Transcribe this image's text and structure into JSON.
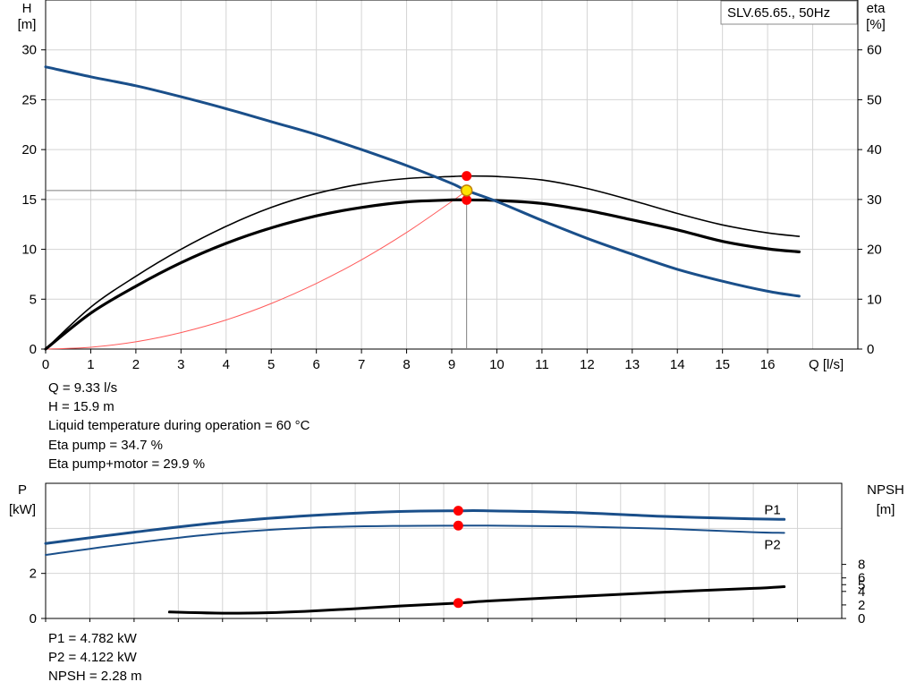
{
  "chart_data": [
    {
      "type": "line",
      "name": "pump-performance",
      "curve_id": "SLV.65.65., 50Hz",
      "xlabel": "Q [l/s]",
      "ylabel_left": [
        "H",
        "[m]"
      ],
      "ylabel_right": [
        "eta",
        "[%]"
      ],
      "xlim": [
        0,
        18
      ],
      "ylim_left": [
        0,
        35
      ],
      "ylim_right": [
        0,
        70
      ],
      "x_ticks": [
        "0",
        "1",
        "2",
        "3",
        "4",
        "5",
        "6",
        "7",
        "8",
        "9",
        "10",
        "11",
        "12",
        "13",
        "14",
        "15",
        "16"
      ],
      "y_ticks_left": [
        "0",
        "5",
        "10",
        "15",
        "20",
        "25",
        "30"
      ],
      "y_ticks_right": [
        "0",
        "10",
        "20",
        "30",
        "40",
        "50",
        "60"
      ],
      "grid": true,
      "series": [
        {
          "id": "H",
          "axis": "left",
          "color": "#1a4f8a",
          "width": 3,
          "x": [
            0,
            1,
            2,
            3,
            4,
            5,
            6,
            7,
            8,
            9,
            9.33,
            10,
            11,
            12,
            13,
            14,
            15,
            16,
            16.7
          ],
          "y": [
            28.3,
            27.3,
            26.4,
            25.3,
            24.1,
            22.8,
            21.5,
            20.0,
            18.4,
            16.6,
            15.9,
            14.8,
            12.9,
            11.1,
            9.5,
            8.0,
            6.8,
            5.8,
            5.3
          ]
        },
        {
          "id": "eta_pump",
          "axis": "right",
          "color": "#000000",
          "width": 1.6,
          "x": [
            0,
            1,
            2,
            3,
            4,
            5,
            6,
            7,
            8,
            9,
            9.33,
            10,
            11,
            12,
            13,
            14,
            15,
            16,
            16.7
          ],
          "y": [
            0,
            8.4,
            14.6,
            20.0,
            24.6,
            28.4,
            31.2,
            33.1,
            34.2,
            34.6,
            34.7,
            34.6,
            33.9,
            32.2,
            29.8,
            27.2,
            24.9,
            23.3,
            22.6
          ]
        },
        {
          "id": "eta_pump_motor",
          "axis": "right",
          "color": "#000000",
          "width": 3.2,
          "x": [
            0,
            1,
            2,
            3,
            4,
            5,
            6,
            7,
            8,
            9,
            9.33,
            10,
            11,
            12,
            13,
            14,
            15,
            16,
            16.7
          ],
          "y": [
            0,
            7.2,
            12.6,
            17.3,
            21.2,
            24.3,
            26.7,
            28.4,
            29.5,
            29.9,
            29.9,
            29.8,
            29.2,
            27.8,
            25.9,
            23.9,
            21.6,
            20.1,
            19.5
          ]
        },
        {
          "id": "system_curve",
          "axis": "left",
          "color": "#ff5a5a",
          "width": 1,
          "x": [
            0,
            1,
            2,
            3,
            4,
            5,
            6,
            7,
            8,
            9,
            9.33
          ],
          "y": [
            0,
            0.18,
            0.73,
            1.65,
            2.92,
            4.57,
            6.58,
            8.95,
            11.69,
            14.8,
            15.9
          ]
        }
      ],
      "operating_point": {
        "Q": 9.33,
        "H": 15.9,
        "eta_pump": 34.7,
        "eta_pump_motor": 29.9
      },
      "marker_colors": {
        "point": "#ff0000",
        "op_fill": "#ffe400",
        "op_stroke": "#c08000",
        "guide": "#7f7f7f"
      },
      "info": [
        "Q = 9.33 l/s",
        "H = 15.9 m",
        "Liquid temperature during operation = 60 °C",
        "Eta pump = 34.7 %",
        "Eta pump+motor = 29.9 %"
      ]
    },
    {
      "type": "line",
      "name": "power-npsh",
      "ylabel_left": [
        "P",
        "[kW]"
      ],
      "ylabel_right": [
        "NPSH",
        "[m]"
      ],
      "xlim": [
        0,
        18
      ],
      "ylim_left": [
        0,
        6
      ],
      "ylim_right": [
        0,
        20
      ],
      "y_ticks_left": [
        "0",
        "2"
      ],
      "y_ticks_right": [
        "0",
        "2",
        "4",
        "5",
        "6",
        "8"
      ],
      "grid": true,
      "series": [
        {
          "id": "P1",
          "label": "P1",
          "axis": "left",
          "color": "#1a4f8a",
          "width": 3,
          "x": [
            0,
            2,
            4,
            6,
            8,
            9.33,
            10,
            12,
            14,
            16,
            16.7
          ],
          "y": [
            3.33,
            3.83,
            4.27,
            4.57,
            4.75,
            4.78,
            4.78,
            4.7,
            4.53,
            4.42,
            4.4
          ]
        },
        {
          "id": "P2",
          "label": "P2",
          "axis": "left",
          "color": "#1a4f8a",
          "width": 2,
          "x": [
            0,
            2,
            4,
            6,
            8,
            9.33,
            10,
            12,
            14,
            16,
            16.7
          ],
          "y": [
            2.82,
            3.35,
            3.78,
            4.03,
            4.11,
            4.12,
            4.12,
            4.08,
            3.98,
            3.83,
            3.8
          ]
        },
        {
          "id": "NPSH",
          "axis": "right",
          "color": "#000000",
          "width": 3,
          "x": [
            2.8,
            4,
            5,
            6,
            7,
            8,
            9.33,
            10,
            12,
            14,
            16,
            16.7
          ],
          "y": [
            0.95,
            0.78,
            0.85,
            1.1,
            1.45,
            1.84,
            2.28,
            2.58,
            3.25,
            3.9,
            4.45,
            4.7
          ]
        }
      ],
      "operating_point": {
        "Q": 9.33,
        "P1": 4.782,
        "P2": 4.122,
        "NPSH": 2.28
      },
      "info": [
        "P1 = 4.782 kW",
        "P2 = 4.122 kW",
        "NPSH = 2.28 m"
      ]
    }
  ]
}
